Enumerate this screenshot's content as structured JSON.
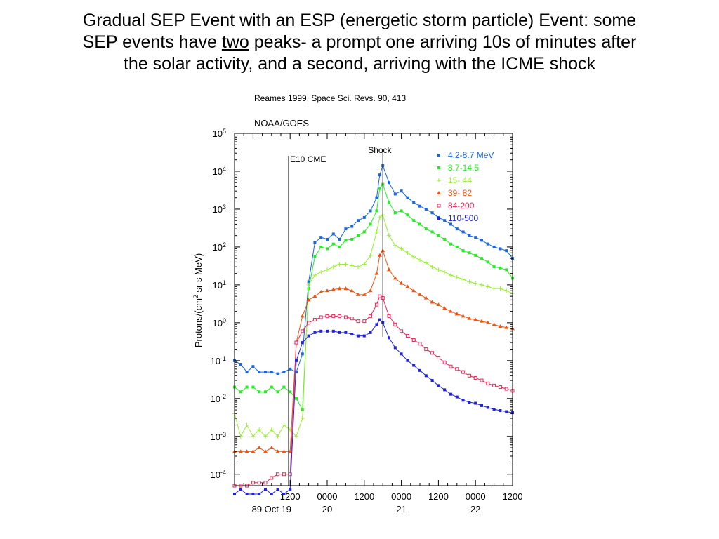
{
  "title": {
    "line1": "Gradual SEP Event with an ESP (energetic storm particle) Event: some",
    "line2_a": "SEP events have ",
    "line2_b": "two",
    "line2_c": " peaks- a prompt one arriving 10s of minutes after",
    "line3": "the solar activity, and a second, arriving with the ICME shock"
  },
  "chart_data": {
    "type": "line",
    "citation": "Reames 1999, Space Sci. Revs. 90, 413",
    "source": "NOAA/GOES",
    "ylabel_parts": [
      "Protons/(cm",
      "2",
      " sr s MeV)"
    ],
    "yscale": "log",
    "ylim": [
      5e-05,
      100000
    ],
    "yticks": [
      {
        "base": "10",
        "exp": "5",
        "value": 100000
      },
      {
        "base": "10",
        "exp": "4",
        "value": 10000
      },
      {
        "base": "10",
        "exp": "3",
        "value": 1000
      },
      {
        "base": "10",
        "exp": "2",
        "value": 100
      },
      {
        "base": "10",
        "exp": "1",
        "value": 10
      },
      {
        "base": "10",
        "exp": "0",
        "value": 1
      },
      {
        "base": "10",
        "exp": "-1",
        "value": 0.1
      },
      {
        "base": "10",
        "exp": "-2",
        "value": 0.01
      },
      {
        "base": "10",
        "exp": "-3",
        "value": 0.001
      },
      {
        "base": "10",
        "exp": "-4",
        "value": 0.0001
      }
    ],
    "xlim": [
      0,
      90
    ],
    "xticks": [
      {
        "x": 18,
        "label": "1200"
      },
      {
        "x": 30,
        "label": "0000"
      },
      {
        "x": 42,
        "label": "1200"
      },
      {
        "x": 54,
        "label": "0000"
      },
      {
        "x": 66,
        "label": "1200"
      },
      {
        "x": 78,
        "label": "0000"
      },
      {
        "x": 90,
        "label": "1200"
      }
    ],
    "date_labels": [
      {
        "x": 12,
        "label": "89 Oct 19"
      },
      {
        "x": 30,
        "label": "20"
      },
      {
        "x": 54,
        "label": "21"
      },
      {
        "x": 78,
        "label": "22"
      }
    ],
    "events": [
      {
        "label": "E10 CME",
        "x": 17.5
      },
      {
        "label": "Shock",
        "x": 48
      }
    ],
    "legend_position": "top-right",
    "series": [
      {
        "name": "4.2-8.7 MeV",
        "color": "#1a66e0",
        "marker": "square",
        "x": [
          0,
          2,
          4,
          6,
          8,
          10,
          12,
          14,
          16,
          18,
          20,
          22,
          24,
          26,
          28,
          30,
          32,
          34,
          36,
          38,
          40,
          42,
          44,
          46,
          47,
          48,
          50,
          52,
          54,
          56,
          58,
          60,
          62,
          64,
          66,
          68,
          70,
          72,
          74,
          76,
          78,
          80,
          82,
          84,
          86,
          88,
          90
        ],
        "y": [
          0.1,
          0.08,
          0.05,
          0.07,
          0.05,
          0.05,
          0.05,
          0.045,
          0.05,
          0.06,
          0.05,
          0.15,
          12,
          130,
          180,
          160,
          220,
          160,
          300,
          350,
          500,
          600,
          900,
          2000,
          8000,
          14000,
          5000,
          2500,
          3000,
          2000,
          1500,
          1200,
          1000,
          800,
          600,
          500,
          400,
          300,
          250,
          200,
          180,
          150,
          120,
          100,
          90,
          80,
          50
        ]
      },
      {
        "name": "8.7-14.5",
        "color": "#22ee22",
        "marker": "square",
        "x": [
          0,
          2,
          4,
          6,
          8,
          10,
          12,
          14,
          16,
          18,
          20,
          22,
          24,
          26,
          28,
          30,
          32,
          34,
          36,
          38,
          40,
          42,
          44,
          46,
          47,
          48,
          50,
          52,
          54,
          56,
          58,
          60,
          62,
          64,
          66,
          68,
          70,
          72,
          74,
          76,
          78,
          80,
          82,
          84,
          86,
          88,
          90
        ],
        "y": [
          0.02,
          0.015,
          0.02,
          0.02,
          0.015,
          0.015,
          0.02,
          0.015,
          0.02,
          0.015,
          0.01,
          0.005,
          8,
          55,
          100,
          90,
          120,
          100,
          150,
          160,
          200,
          250,
          400,
          900,
          3500,
          4500,
          1500,
          800,
          900,
          700,
          500,
          400,
          300,
          250,
          200,
          160,
          120,
          100,
          80,
          70,
          60,
          50,
          40,
          30,
          28,
          25,
          15
        ]
      },
      {
        "name": "15- 44",
        "color": "#99ee33",
        "marker": "plus",
        "x": [
          0,
          2,
          4,
          6,
          8,
          10,
          12,
          14,
          16,
          18,
          20,
          22,
          24,
          26,
          28,
          30,
          32,
          34,
          36,
          38,
          40,
          42,
          44,
          46,
          47,
          48,
          50,
          52,
          54,
          56,
          58,
          60,
          62,
          64,
          66,
          68,
          70,
          72,
          74,
          76,
          78,
          80,
          82,
          84,
          86,
          88,
          90
        ],
        "y": [
          0.004,
          0.001,
          0.002,
          0.001,
          0.0015,
          0.001,
          0.0015,
          0.001,
          0.002,
          0.0015,
          0.001,
          0.003,
          10,
          18,
          22,
          25,
          30,
          35,
          35,
          32,
          30,
          35,
          60,
          250,
          600,
          700,
          200,
          110,
          90,
          70,
          55,
          45,
          38,
          30,
          25,
          22,
          18,
          16,
          14,
          12,
          11,
          10,
          9,
          8,
          8,
          7,
          6
        ]
      },
      {
        "name": "39- 82",
        "color": "#ee5511",
        "marker": "triangle",
        "x": [
          0,
          2,
          4,
          6,
          8,
          10,
          12,
          14,
          16,
          18,
          20,
          22,
          24,
          26,
          28,
          30,
          32,
          34,
          36,
          38,
          40,
          42,
          44,
          46,
          47,
          48,
          50,
          52,
          54,
          56,
          58,
          60,
          62,
          64,
          66,
          68,
          70,
          72,
          74,
          76,
          78,
          80,
          82,
          84,
          86,
          88,
          90
        ],
        "y": [
          0.0004,
          0.0004,
          0.0004,
          0.0004,
          0.0005,
          0.0004,
          0.0005,
          0.0004,
          0.0004,
          0.0004,
          0.3,
          1.5,
          4,
          5,
          6.5,
          7,
          7.5,
          8,
          8,
          7,
          5.5,
          5.5,
          7,
          20,
          60,
          80,
          25,
          15,
          11,
          9,
          7,
          5.5,
          4.5,
          3.5,
          3,
          2.4,
          2,
          1.7,
          1.5,
          1.3,
          1.2,
          1.1,
          1,
          0.9,
          0.8,
          0.75,
          0.7
        ]
      },
      {
        "name": "84-200",
        "color": "#ee2255",
        "marker": "square-open",
        "x": [
          0,
          2,
          4,
          6,
          8,
          10,
          12,
          14,
          16,
          18,
          20,
          22,
          24,
          26,
          28,
          30,
          32,
          34,
          36,
          38,
          40,
          42,
          44,
          46,
          47,
          48,
          50,
          52,
          54,
          56,
          58,
          60,
          62,
          64,
          66,
          68,
          70,
          72,
          74,
          76,
          78,
          80,
          82,
          84,
          86,
          88,
          90
        ],
        "y": [
          5e-05,
          5e-05,
          5e-05,
          6e-05,
          6e-05,
          6e-05,
          8e-05,
          0.0001,
          0.0001,
          0.0001,
          0.3,
          0.6,
          1,
          1.2,
          1.4,
          1.5,
          1.5,
          1.5,
          1.4,
          1.3,
          1.1,
          1.1,
          1.5,
          3,
          5,
          4.5,
          1.5,
          0.9,
          0.6,
          0.45,
          0.35,
          0.28,
          0.2,
          0.16,
          0.12,
          0.09,
          0.07,
          0.06,
          0.05,
          0.04,
          0.035,
          0.03,
          0.025,
          0.022,
          0.02,
          0.018,
          0.016
        ]
      },
      {
        "name": "110-500",
        "color": "#2222dd",
        "marker": "square",
        "x": [
          0,
          2,
          4,
          6,
          8,
          10,
          12,
          14,
          16,
          18,
          20,
          22,
          24,
          26,
          28,
          30,
          32,
          34,
          36,
          38,
          40,
          42,
          44,
          46,
          47,
          48,
          50,
          52,
          54,
          56,
          58,
          60,
          62,
          64,
          66,
          68,
          70,
          72,
          74,
          76,
          78,
          80,
          82,
          84,
          86,
          88,
          90
        ],
        "y": [
          3e-05,
          4e-05,
          3e-05,
          3e-05,
          3e-05,
          4e-05,
          3e-05,
          4e-05,
          3e-05,
          4e-05,
          0.1,
          0.3,
          0.45,
          0.55,
          0.6,
          0.6,
          0.6,
          0.55,
          0.55,
          0.5,
          0.45,
          0.45,
          0.55,
          0.9,
          1.2,
          1,
          0.4,
          0.22,
          0.15,
          0.1,
          0.075,
          0.055,
          0.04,
          0.03,
          0.022,
          0.017,
          0.013,
          0.011,
          0.009,
          0.008,
          0.0075,
          0.0065,
          0.0058,
          0.0052,
          0.0048,
          0.0045,
          0.0042
        ]
      }
    ]
  }
}
